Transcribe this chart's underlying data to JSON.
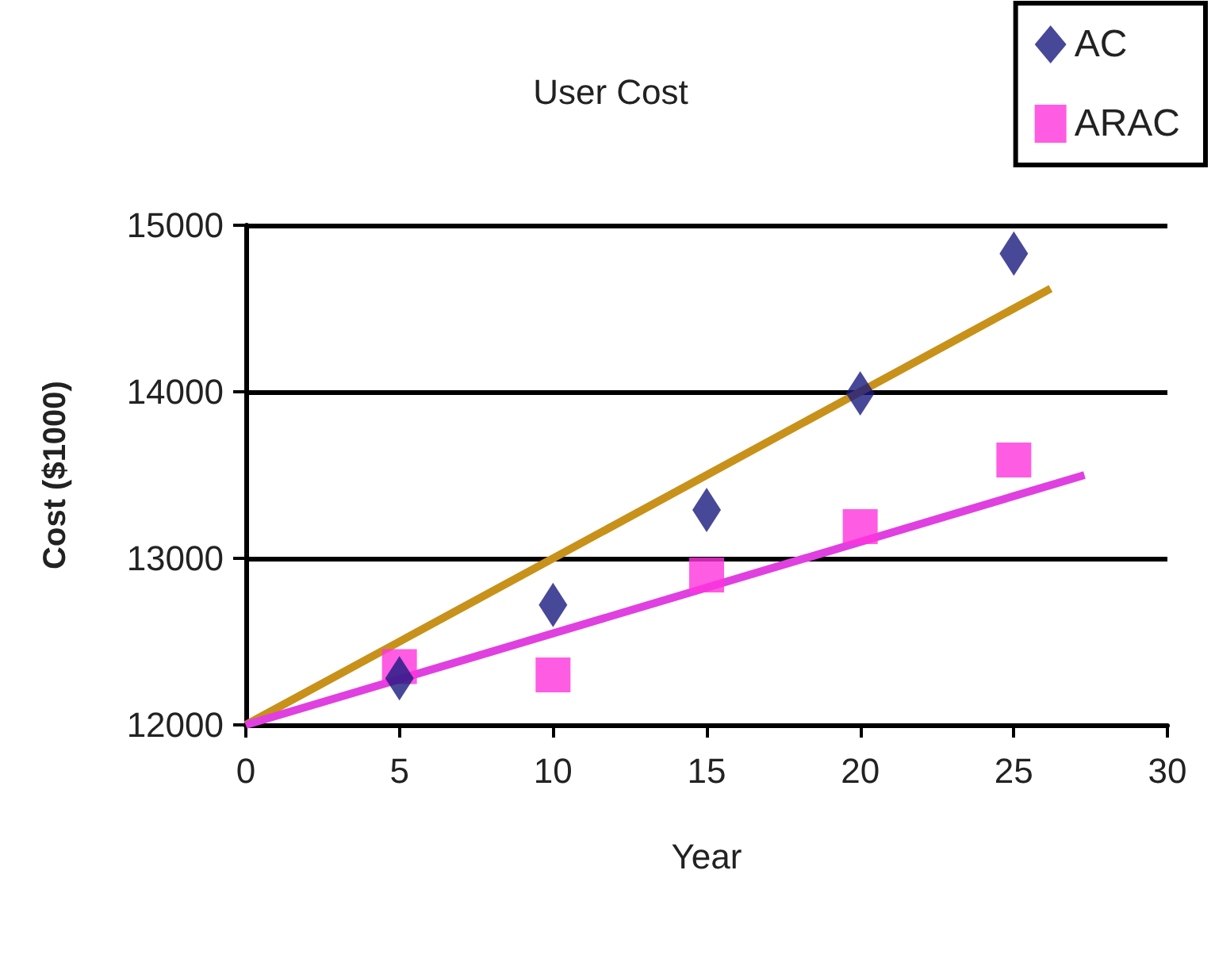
{
  "chart_data": {
    "type": "scatter",
    "title": "User Cost",
    "xlabel": "Year",
    "ylabel": "Cost ($1000)",
    "xlim": [
      0,
      30
    ],
    "xticks": [
      0,
      5,
      10,
      15,
      20,
      25,
      30
    ],
    "ylim": [
      12000,
      15000
    ],
    "yticks": [
      12000,
      13000,
      14000,
      15000
    ],
    "grid": "y",
    "legend": "top right",
    "series": [
      {
        "name": "AC",
        "color": "#1a1a80",
        "marker": "diamond",
        "x": [
          5,
          10,
          15,
          20,
          25
        ],
        "values": [
          12280,
          12720,
          13290,
          13990,
          14830
        ]
      },
      {
        "name": "ARAC",
        "color": "#ff33dd",
        "marker": "square",
        "x": [
          5,
          10,
          15,
          20,
          25
        ],
        "values": [
          12350,
          12300,
          12900,
          13190,
          13590
        ]
      },
      {
        "type": "line",
        "color": "#c8911a",
        "marker": "none",
        "line_style": "solid",
        "x": [
          0,
          26.2
        ],
        "values": [
          12000,
          14620
        ]
      },
      {
        "type": "line",
        "color": "#e040e0",
        "marker": "none",
        "line_style": "solid",
        "x": [
          0,
          27.3
        ],
        "values": [
          12000,
          13500
        ]
      }
    ]
  }
}
